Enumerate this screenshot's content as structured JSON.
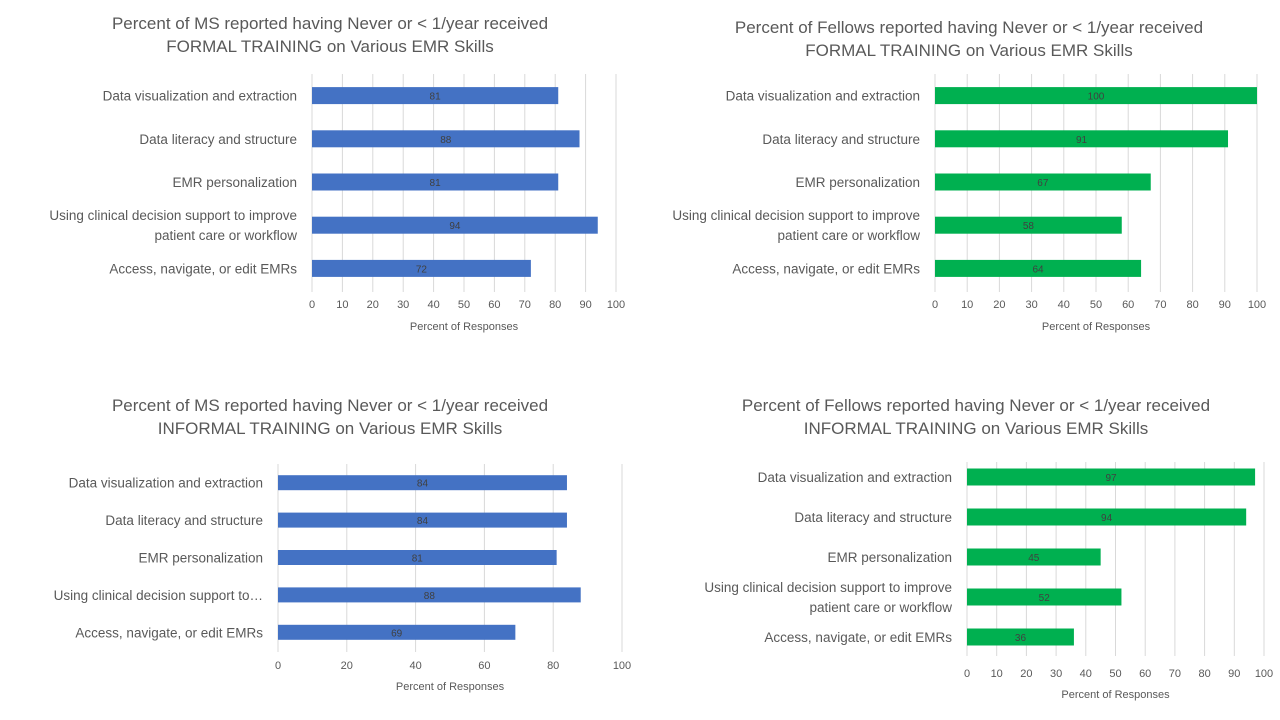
{
  "colors": {
    "blue": "#4472C4",
    "green": "#00B050",
    "grid": "#D9D9D9",
    "text": "#595959"
  },
  "chart_data": [
    {
      "type": "bar",
      "orientation": "horizontal",
      "title_lines": [
        "Percent of MS reported having Never or < 1/year received",
        "FORMAL TRAINING on Various EMR Skills"
      ],
      "categories": [
        "Data visualization and extraction",
        "Data literacy and structure",
        "EMR personalization",
        "Using clinical decision support to improve patient care or workflow",
        "Access, navigate, or edit EMRs"
      ],
      "category_label_lines": [
        [
          "Data visualization and extraction"
        ],
        [
          "Data literacy and structure"
        ],
        [
          "EMR personalization"
        ],
        [
          "Using clinical decision support to improve",
          "patient care or workflow"
        ],
        [
          "Access, navigate, or edit EMRs"
        ]
      ],
      "values": [
        81,
        88,
        81,
        94,
        72
      ],
      "xlabel": "Percent of Responses",
      "xlim": [
        0,
        100
      ],
      "xticks": [
        "0",
        "10",
        "20",
        "30",
        "40",
        "50",
        "60",
        "70",
        "80",
        "90",
        "100"
      ],
      "color": "#4472C4",
      "grid": true
    },
    {
      "type": "bar",
      "orientation": "horizontal",
      "title_lines": [
        "Percent of Fellows reported having Never or < 1/year received",
        "FORMAL TRAINING on Various EMR Skills"
      ],
      "categories": [
        "Data visualization and extraction",
        "Data literacy and structure",
        "EMR personalization",
        "Using clinical decision support to improve patient care or workflow",
        "Access, navigate, or edit EMRs"
      ],
      "category_label_lines": [
        [
          "Data visualization and extraction"
        ],
        [
          "Data literacy and structure"
        ],
        [
          "EMR personalization"
        ],
        [
          "Using clinical decision support to improve",
          "patient care or workflow"
        ],
        [
          "Access, navigate, or edit EMRs"
        ]
      ],
      "values": [
        100,
        91,
        67,
        58,
        64
      ],
      "xlabel": "Percent of Responses",
      "xlim": [
        0,
        100
      ],
      "xticks": [
        "0",
        "10",
        "20",
        "30",
        "40",
        "50",
        "60",
        "70",
        "80",
        "90",
        "100"
      ],
      "color": "#00B050",
      "grid": true
    },
    {
      "type": "bar",
      "orientation": "horizontal",
      "title_lines": [
        "Percent of MS reported having Never or < 1/year received",
        "INFORMAL TRAINING on Various EMR Skills"
      ],
      "categories": [
        "Data visualization and extraction",
        "Data literacy and structure",
        "EMR personalization",
        "Using clinical decision support to…",
        "Access, navigate, or edit EMRs"
      ],
      "category_label_lines": [
        [
          "Data visualization and extraction"
        ],
        [
          "Data literacy and structure"
        ],
        [
          "EMR personalization"
        ],
        [
          "Using clinical decision support to…"
        ],
        [
          "Access, navigate, or edit EMRs"
        ]
      ],
      "values": [
        84,
        84,
        81,
        88,
        69
      ],
      "xlabel": "Percent of Responses",
      "xlim": [
        0,
        100
      ],
      "xticks": [
        "0",
        "20",
        "40",
        "60",
        "80",
        "100"
      ],
      "color": "#4472C4",
      "grid": true
    },
    {
      "type": "bar",
      "orientation": "horizontal",
      "title_lines": [
        "Percent of Fellows reported having Never or < 1/year received",
        "INFORMAL TRAINING on Various EMR Skills"
      ],
      "categories": [
        "Data visualization and extraction",
        "Data literacy and structure",
        "EMR personalization",
        "Using clinical decision support to improve patient care or workflow",
        "Access, navigate, or edit EMRs"
      ],
      "category_label_lines": [
        [
          "Data visualization and extraction"
        ],
        [
          "Data literacy and structure"
        ],
        [
          "EMR personalization"
        ],
        [
          "Using clinical decision support to improve",
          "patient care or workflow"
        ],
        [
          "Access, navigate, or edit EMRs"
        ]
      ],
      "values": [
        97,
        94,
        45,
        52,
        36
      ],
      "xlabel": "Percent of Responses",
      "xlim": [
        0,
        100
      ],
      "xticks": [
        "0",
        "10",
        "20",
        "30",
        "40",
        "50",
        "60",
        "70",
        "80",
        "90",
        "100"
      ],
      "color": "#00B050",
      "grid": true
    }
  ]
}
